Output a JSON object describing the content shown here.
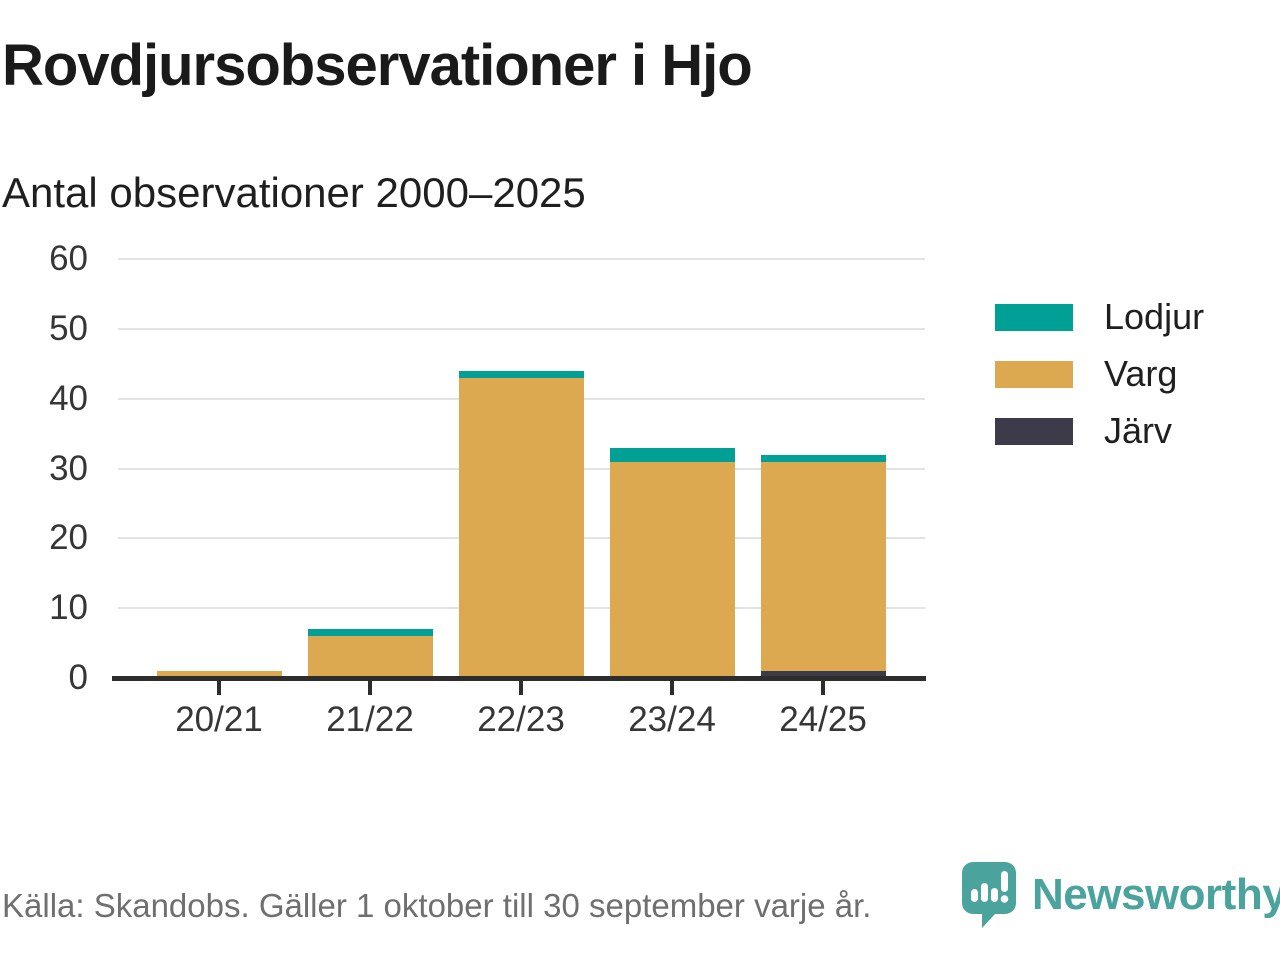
{
  "title": "Rovdjursobservationer i Hjo",
  "subtitle": "Antal observationer 2000–2025",
  "footer": {
    "source_text": "Källa: Skandobs. Gäller 1 oktober till 30 september varje år."
  },
  "branding": {
    "logo_text": "Newsworthy",
    "logo_color": "#4aa39c"
  },
  "chart_data": {
    "type": "bar",
    "stacked": true,
    "title": "Rovdjursobservationer i Hjo",
    "subtitle": "Antal observationer 2000–2025",
    "xlabel": "",
    "ylabel": "",
    "categories": [
      "20/21",
      "21/22",
      "22/23",
      "23/24",
      "24/25"
    ],
    "series": [
      {
        "name": "Lodjur",
        "color": "#00a096",
        "values": [
          0,
          1,
          1,
          2,
          1
        ]
      },
      {
        "name": "Varg",
        "color": "#dca950",
        "values": [
          1,
          6,
          43,
          31,
          30
        ]
      },
      {
        "name": "Järv",
        "color": "#3d3b49",
        "values": [
          0,
          0,
          0,
          0,
          1
        ]
      }
    ],
    "stack_order_bottom_to_top": [
      "Järv",
      "Varg",
      "Lodjur"
    ],
    "totals": [
      1,
      7,
      44,
      33,
      32
    ],
    "ylim": [
      0,
      60
    ],
    "yticks": [
      0,
      10,
      20,
      30,
      40,
      50,
      60
    ],
    "grid": true,
    "legend_position": "right"
  }
}
